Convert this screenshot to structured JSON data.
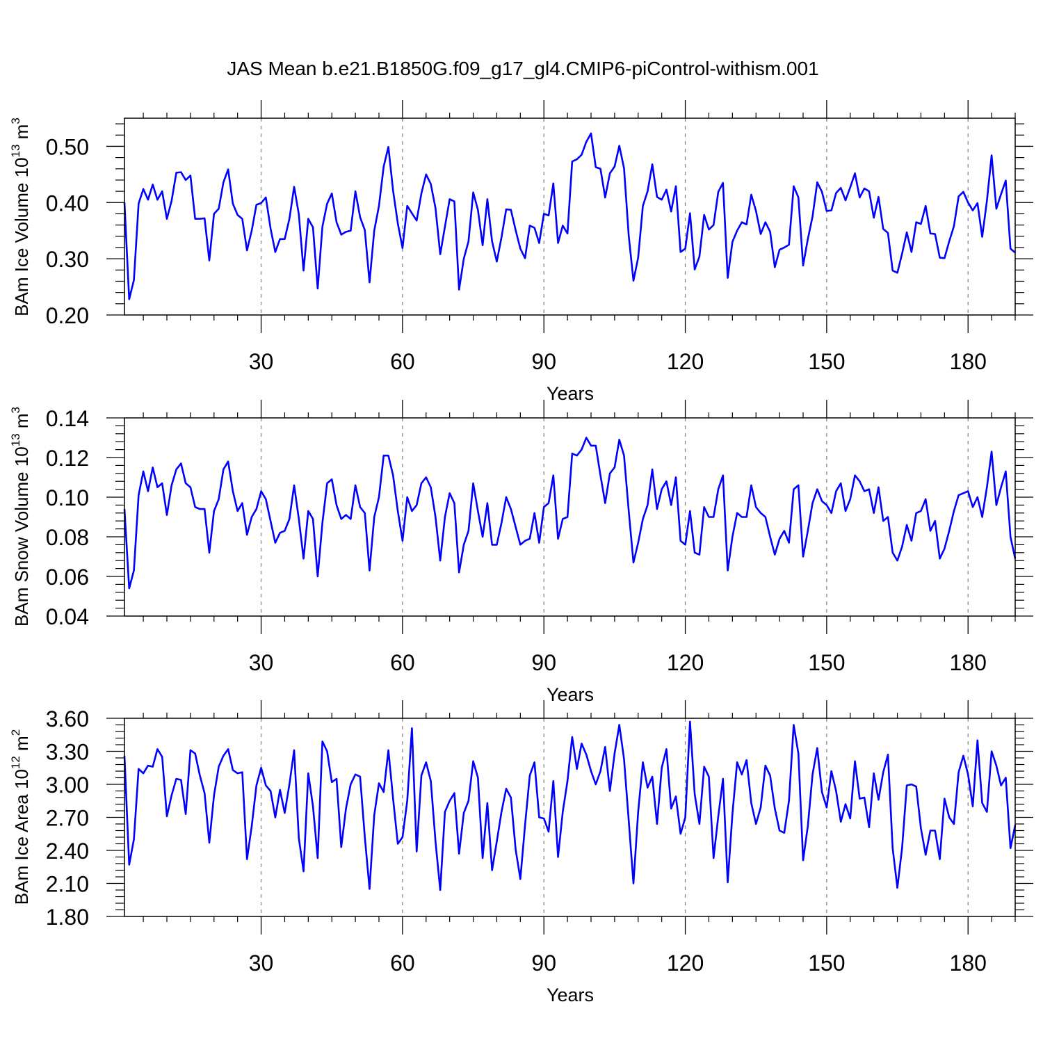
{
  "title": "JAS Mean b.e21.B1850G.f09_g17_gl4.CMIP6-piControl-withism.001",
  "chart_data": [
    {
      "type": "line",
      "ylabel_main": "BAm Ice Volume 10",
      "ylabel_exp": "13",
      "ylabel_unit": " m",
      "ylabel_unit_exp": "3",
      "xlabel": "Years",
      "xlim": [
        1,
        190
      ],
      "ylim": [
        0.2,
        0.55
      ],
      "xticks": [
        30,
        60,
        90,
        120,
        150,
        180
      ],
      "xtick_labels": [
        "30",
        "60",
        "90",
        "120",
        "150",
        "180"
      ],
      "yticks": [
        0.2,
        0.3,
        0.4,
        0.5
      ],
      "ytick_labels": [
        "0.20",
        "0.30",
        "0.40",
        "0.50"
      ],
      "grid": "vertical dashed",
      "color": "#0000ff",
      "values": [
        0.4,
        0.228,
        0.262,
        0.398,
        0.424,
        0.405,
        0.432,
        0.405,
        0.42,
        0.371,
        0.403,
        0.453,
        0.454,
        0.44,
        0.448,
        0.371,
        0.371,
        0.372,
        0.297,
        0.38,
        0.389,
        0.436,
        0.459,
        0.398,
        0.378,
        0.371,
        0.315,
        0.35,
        0.396,
        0.399,
        0.409,
        0.354,
        0.312,
        0.335,
        0.335,
        0.371,
        0.428,
        0.379,
        0.279,
        0.371,
        0.356,
        0.247,
        0.357,
        0.398,
        0.416,
        0.365,
        0.343,
        0.348,
        0.35,
        0.42,
        0.374,
        0.351,
        0.258,
        0.35,
        0.394,
        0.464,
        0.499,
        0.421,
        0.363,
        0.319,
        0.394,
        0.381,
        0.368,
        0.416,
        0.45,
        0.433,
        0.39,
        0.308,
        0.357,
        0.406,
        0.402,
        0.245,
        0.3,
        0.331,
        0.418,
        0.387,
        0.324,
        0.406,
        0.331,
        0.295,
        0.338,
        0.388,
        0.387,
        0.351,
        0.318,
        0.301,
        0.359,
        0.355,
        0.328,
        0.38,
        0.377,
        0.434,
        0.328,
        0.359,
        0.345,
        0.473,
        0.477,
        0.485,
        0.508,
        0.523,
        0.463,
        0.46,
        0.409,
        0.452,
        0.464,
        0.501,
        0.461,
        0.341,
        0.261,
        0.302,
        0.394,
        0.42,
        0.468,
        0.41,
        0.405,
        0.423,
        0.384,
        0.429,
        0.312,
        0.318,
        0.381,
        0.281,
        0.304,
        0.378,
        0.352,
        0.36,
        0.419,
        0.435,
        0.266,
        0.33,
        0.35,
        0.365,
        0.361,
        0.414,
        0.385,
        0.344,
        0.365,
        0.348,
        0.285,
        0.316,
        0.32,
        0.325,
        0.429,
        0.409,
        0.288,
        0.335,
        0.375,
        0.436,
        0.419,
        0.385,
        0.386,
        0.417,
        0.426,
        0.404,
        0.427,
        0.452,
        0.409,
        0.425,
        0.42,
        0.373,
        0.41,
        0.353,
        0.346,
        0.279,
        0.275,
        0.309,
        0.347,
        0.312,
        0.365,
        0.362,
        0.394,
        0.345,
        0.344,
        0.302,
        0.301,
        0.331,
        0.358,
        0.411,
        0.419,
        0.4,
        0.386,
        0.399,
        0.339,
        0.403,
        0.484,
        0.389,
        0.415,
        0.439,
        0.318,
        0.311
      ]
    },
    {
      "type": "line",
      "ylabel_main": "BAm Snow Volume 10",
      "ylabel_exp": "13",
      "ylabel_unit": " m",
      "ylabel_unit_exp": "3",
      "xlabel": "Years",
      "xlim": [
        1,
        190
      ],
      "ylim": [
        0.04,
        0.14
      ],
      "xticks": [
        30,
        60,
        90,
        120,
        150,
        180
      ],
      "xtick_labels": [
        "30",
        "60",
        "90",
        "120",
        "150",
        "180"
      ],
      "yticks": [
        0.04,
        0.06,
        0.08,
        0.1,
        0.12,
        0.14
      ],
      "ytick_labels": [
        "0.04",
        "0.06",
        "0.08",
        "0.10",
        "0.12",
        "0.14"
      ],
      "grid": "vertical dashed",
      "color": "#0000ff",
      "values": [
        0.094,
        0.054,
        0.063,
        0.101,
        0.113,
        0.103,
        0.115,
        0.105,
        0.107,
        0.091,
        0.106,
        0.114,
        0.117,
        0.107,
        0.105,
        0.095,
        0.094,
        0.094,
        0.072,
        0.093,
        0.099,
        0.114,
        0.118,
        0.103,
        0.093,
        0.097,
        0.081,
        0.09,
        0.094,
        0.103,
        0.099,
        0.088,
        0.077,
        0.082,
        0.083,
        0.089,
        0.106,
        0.089,
        0.069,
        0.093,
        0.089,
        0.06,
        0.087,
        0.107,
        0.109,
        0.096,
        0.089,
        0.091,
        0.089,
        0.106,
        0.095,
        0.092,
        0.063,
        0.09,
        0.1,
        0.121,
        0.121,
        0.111,
        0.093,
        0.078,
        0.1,
        0.093,
        0.096,
        0.107,
        0.11,
        0.105,
        0.09,
        0.068,
        0.09,
        0.102,
        0.097,
        0.062,
        0.076,
        0.083,
        0.107,
        0.093,
        0.08,
        0.097,
        0.076,
        0.076,
        0.087,
        0.1,
        0.094,
        0.085,
        0.076,
        0.078,
        0.079,
        0.092,
        0.077,
        0.095,
        0.097,
        0.111,
        0.079,
        0.089,
        0.09,
        0.122,
        0.121,
        0.124,
        0.13,
        0.126,
        0.126,
        0.111,
        0.097,
        0.112,
        0.115,
        0.129,
        0.121,
        0.093,
        0.067,
        0.077,
        0.089,
        0.096,
        0.114,
        0.094,
        0.104,
        0.108,
        0.096,
        0.11,
        0.078,
        0.076,
        0.093,
        0.072,
        0.071,
        0.095,
        0.09,
        0.09,
        0.104,
        0.111,
        0.063,
        0.08,
        0.092,
        0.09,
        0.09,
        0.106,
        0.095,
        0.092,
        0.09,
        0.08,
        0.071,
        0.079,
        0.083,
        0.077,
        0.104,
        0.106,
        0.07,
        0.083,
        0.097,
        0.104,
        0.098,
        0.096,
        0.092,
        0.103,
        0.107,
        0.093,
        0.099,
        0.111,
        0.108,
        0.103,
        0.104,
        0.092,
        0.105,
        0.088,
        0.09,
        0.072,
        0.068,
        0.075,
        0.086,
        0.078,
        0.092,
        0.093,
        0.099,
        0.083,
        0.088,
        0.069,
        0.074,
        0.083,
        0.093,
        0.101,
        0.102,
        0.103,
        0.095,
        0.1,
        0.09,
        0.105,
        0.123,
        0.096,
        0.105,
        0.113,
        0.08,
        0.069
      ]
    },
    {
      "type": "line",
      "ylabel_main": "BAm Ice Area 10",
      "ylabel_exp": "12",
      "ylabel_unit": " m",
      "ylabel_unit_exp": "2",
      "xlabel": "Years",
      "xlim": [
        1,
        190
      ],
      "ylim": [
        1.8,
        3.6
      ],
      "xticks": [
        30,
        60,
        90,
        120,
        150,
        180
      ],
      "xtick_labels": [
        "30",
        "60",
        "90",
        "120",
        "150",
        "180"
      ],
      "yticks": [
        1.8,
        2.1,
        2.4,
        2.7,
        3.0,
        3.3,
        3.6
      ],
      "ytick_labels": [
        "1.80",
        "2.10",
        "2.40",
        "2.70",
        "3.00",
        "3.30",
        "3.60"
      ],
      "grid": "vertical dashed",
      "color": "#0000ff",
      "values": [
        3.26,
        2.27,
        2.5,
        3.14,
        3.1,
        3.17,
        3.16,
        3.32,
        3.25,
        2.71,
        2.9,
        3.05,
        3.04,
        2.73,
        3.31,
        3.28,
        3.08,
        2.92,
        2.47,
        2.9,
        3.16,
        3.26,
        3.32,
        3.13,
        3.1,
        3.11,
        2.32,
        2.62,
        2.99,
        3.15,
        2.99,
        2.94,
        2.7,
        2.95,
        2.74,
        3.0,
        3.31,
        2.51,
        2.21,
        3.1,
        2.8,
        2.33,
        3.39,
        3.3,
        3.02,
        3.05,
        2.43,
        2.78,
        3.0,
        3.09,
        3.07,
        2.52,
        2.05,
        2.72,
        3.01,
        2.93,
        3.31,
        2.87,
        2.46,
        2.52,
        2.85,
        3.51,
        2.39,
        3.08,
        3.2,
        3.03,
        2.48,
        2.04,
        2.75,
        2.85,
        2.92,
        2.37,
        2.74,
        2.85,
        3.21,
        3.06,
        2.33,
        2.83,
        2.22,
        2.48,
        2.75,
        2.96,
        2.88,
        2.41,
        2.14,
        2.63,
        3.08,
        3.2,
        2.7,
        2.69,
        2.57,
        3.03,
        2.34,
        2.75,
        3.03,
        3.43,
        3.14,
        3.37,
        3.27,
        3.12,
        3.0,
        3.12,
        3.34,
        2.94,
        3.28,
        3.54,
        3.23,
        2.67,
        2.1,
        2.75,
        3.2,
        2.97,
        3.07,
        2.64,
        3.15,
        3.32,
        2.78,
        2.89,
        2.55,
        2.7,
        3.57,
        2.91,
        2.64,
        3.16,
        3.07,
        2.33,
        2.71,
        3.05,
        2.11,
        2.73,
        3.2,
        3.09,
        3.22,
        2.83,
        2.64,
        2.79,
        3.17,
        3.08,
        2.78,
        2.58,
        2.56,
        2.85,
        3.54,
        3.28,
        2.31,
        2.62,
        3.09,
        3.33,
        2.93,
        2.79,
        3.12,
        2.94,
        2.66,
        2.82,
        2.69,
        3.21,
        2.87,
        2.88,
        2.61,
        3.1,
        2.86,
        3.11,
        3.27,
        2.42,
        2.06,
        2.42,
        2.99,
        3.0,
        2.98,
        2.6,
        2.36,
        2.58,
        2.58,
        2.32,
        2.87,
        2.7,
        2.64,
        3.11,
        3.26,
        3.09,
        2.8,
        3.4,
        2.83,
        2.75,
        3.3,
        3.17,
        2.99,
        3.06,
        2.42,
        2.63
      ]
    }
  ]
}
